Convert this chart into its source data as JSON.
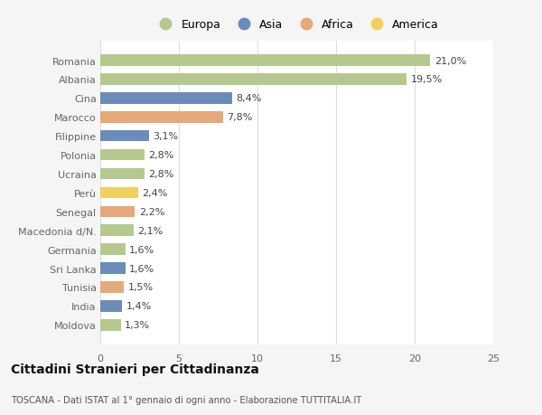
{
  "categories": [
    "Romania",
    "Albania",
    "Cina",
    "Marocco",
    "Filippine",
    "Polonia",
    "Ucraina",
    "Perù",
    "Senegal",
    "Macedonia d/N.",
    "Germania",
    "Sri Lanka",
    "Tunisia",
    "India",
    "Moldova"
  ],
  "values": [
    21.0,
    19.5,
    8.4,
    7.8,
    3.1,
    2.8,
    2.8,
    2.4,
    2.2,
    2.1,
    1.6,
    1.6,
    1.5,
    1.4,
    1.3
  ],
  "labels": [
    "21,0%",
    "19,5%",
    "8,4%",
    "7,8%",
    "3,1%",
    "2,8%",
    "2,8%",
    "2,4%",
    "2,2%",
    "2,1%",
    "1,6%",
    "1,6%",
    "1,5%",
    "1,4%",
    "1,3%"
  ],
  "continents": [
    "Europa",
    "Europa",
    "Asia",
    "Africa",
    "Asia",
    "Europa",
    "Europa",
    "America",
    "Africa",
    "Europa",
    "Europa",
    "Asia",
    "Africa",
    "Asia",
    "Europa"
  ],
  "continent_colors": {
    "Europa": "#b5c98e",
    "Asia": "#6b8cba",
    "Africa": "#e5a97a",
    "America": "#f0d060"
  },
  "legend_order": [
    "Europa",
    "Asia",
    "Africa",
    "America"
  ],
  "xlim": [
    0,
    25
  ],
  "xticks": [
    0,
    5,
    10,
    15,
    20,
    25
  ],
  "background_color": "#f5f5f5",
  "plot_background": "#ffffff",
  "title": "Cittadini Stranieri per Cittadinanza",
  "subtitle": "TOSCANA - Dati ISTAT al 1° gennaio di ogni anno - Elaborazione TUTTITALIA.IT",
  "bar_height": 0.6,
  "label_fontsize": 8,
  "axis_label_color": "#666666",
  "grid_color": "#dddddd"
}
